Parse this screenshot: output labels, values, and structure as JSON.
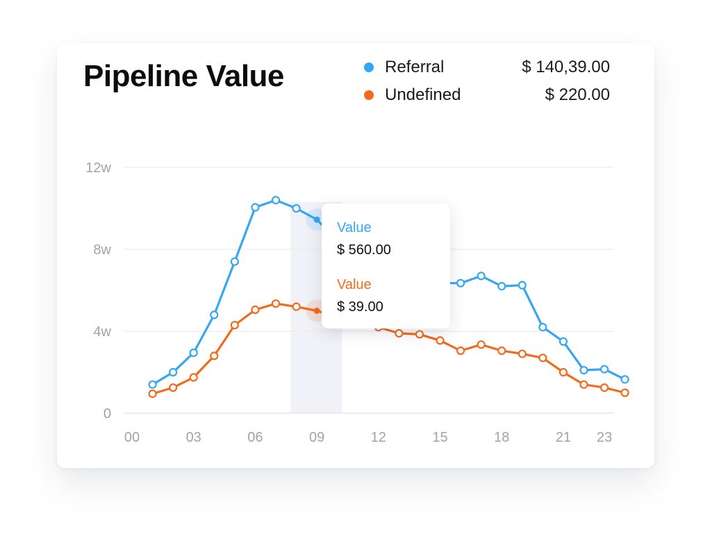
{
  "title": "Pipeline Value",
  "legend": [
    {
      "label": "Referral",
      "value": "$ 140,39.00",
      "color": "#35a7f2"
    },
    {
      "label": "Undefined",
      "value": "$ 220.00",
      "color": "#f26a1b"
    }
  ],
  "tooltip": {
    "entries": [
      {
        "label": "Value",
        "value": "$ 560.00",
        "color": "#35a7f2"
      },
      {
        "label": "Value",
        "value": "$ 39.00",
        "color": "#f26a1b"
      }
    ]
  },
  "chart_data": {
    "type": "line",
    "x_ticks": [
      "00",
      "03",
      "06",
      "09",
      "12",
      "15",
      "18",
      "21",
      "23"
    ],
    "y_ticks": [
      "12w",
      "8w",
      "4w",
      "0"
    ],
    "ylim": [
      0,
      12
    ],
    "xlim": [
      0,
      23
    ],
    "grid": true,
    "highlight_x": 9,
    "x": [
      1,
      2,
      3,
      4,
      5,
      6,
      7,
      8,
      9,
      10,
      11,
      12,
      13,
      14,
      15,
      16,
      17,
      18,
      19,
      20,
      21,
      22,
      23,
      24
    ],
    "series": [
      {
        "name": "Referral",
        "color": "#35a7f2",
        "values": [
          1.4,
          2.0,
          2.95,
          4.8,
          7.4,
          10.05,
          10.4,
          10.0,
          9.45,
          8.4,
          7.2,
          6.6,
          6.5,
          6.45,
          6.35,
          6.35,
          6.7,
          6.2,
          6.25,
          4.2,
          3.5,
          2.1,
          2.15,
          1.65
        ]
      },
      {
        "name": "Undefined",
        "color": "#f26a1b",
        "values": [
          0.95,
          1.25,
          1.75,
          2.8,
          4.3,
          5.05,
          5.35,
          5.2,
          5.0,
          4.7,
          4.45,
          4.2,
          3.9,
          3.85,
          3.55,
          3.05,
          3.35,
          3.05,
          2.9,
          2.7,
          2.0,
          1.4,
          1.25,
          1.0
        ]
      }
    ]
  }
}
